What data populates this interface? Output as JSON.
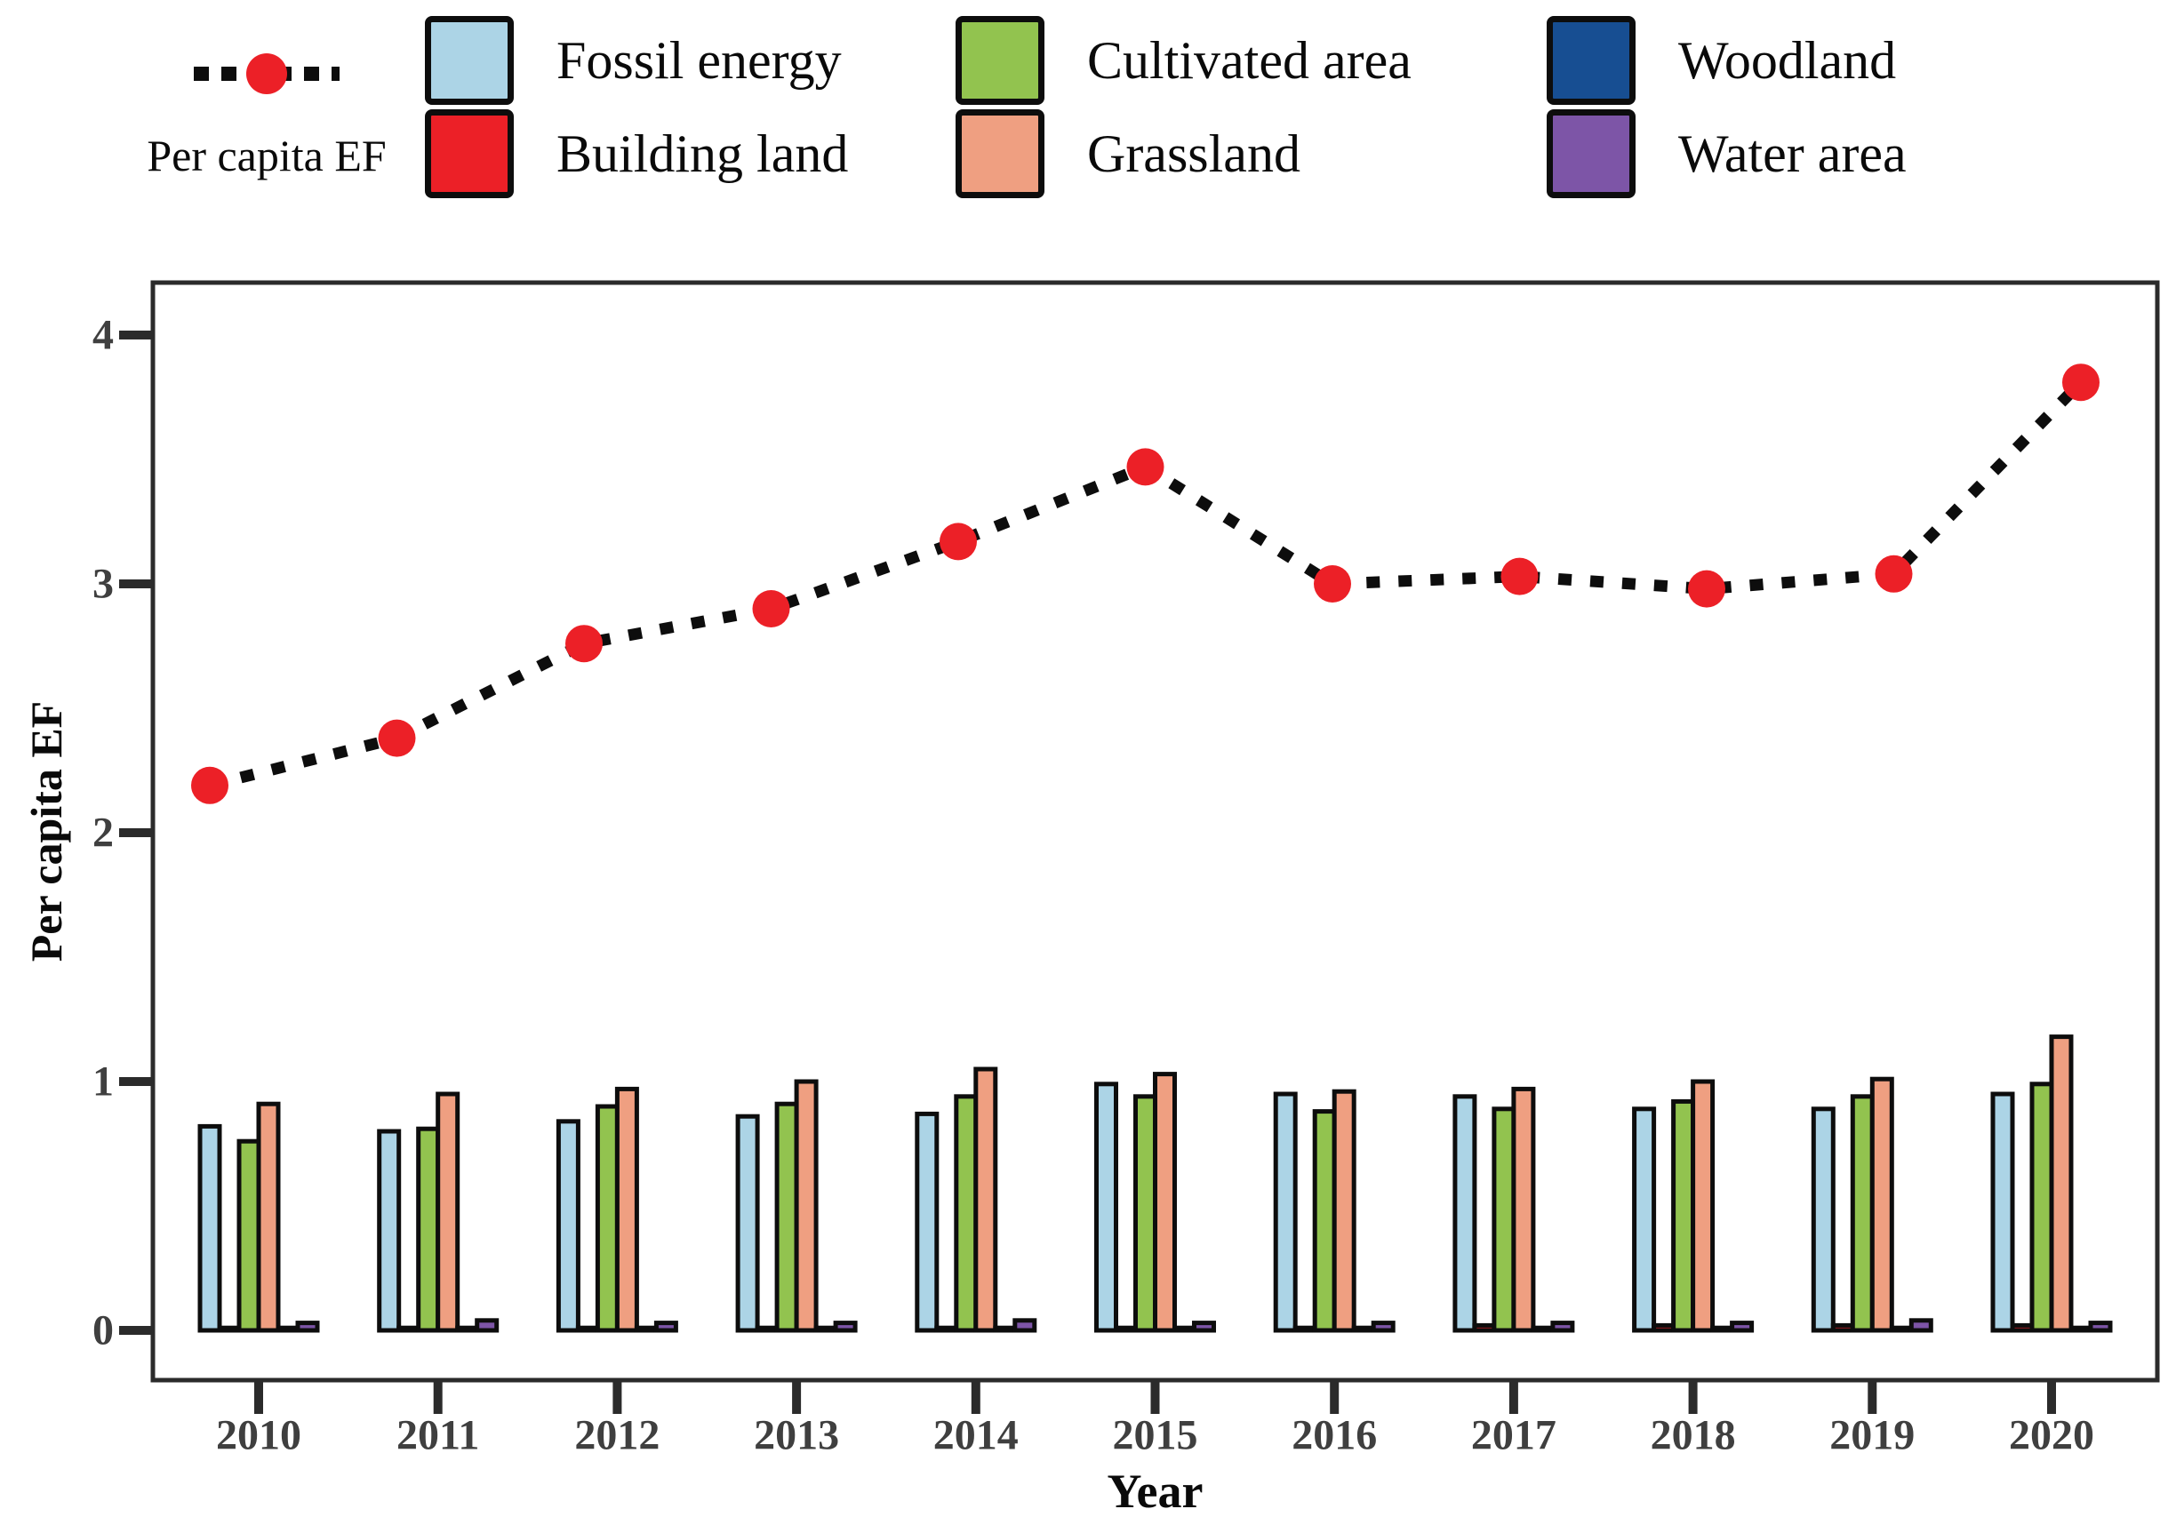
{
  "chart_data": {
    "type": "bar+line",
    "title": "",
    "xlabel": "Year",
    "ylabel": "Per capita EF",
    "categories": [
      "2010",
      "2011",
      "2012",
      "2013",
      "2014",
      "2015",
      "2016",
      "2017",
      "2018",
      "2019",
      "2020"
    ],
    "y_ticks": [
      0,
      1,
      2,
      3,
      4
    ],
    "ylim": [
      -0.2,
      4.2
    ],
    "grid": "off",
    "legend_position": "top",
    "bar_series": [
      {
        "name": "Fossil energy",
        "color": "#ACD4E6",
        "values": [
          0.82,
          0.8,
          0.84,
          0.86,
          0.87,
          0.99,
          0.95,
          0.94,
          0.89,
          0.89,
          0.95
        ]
      },
      {
        "name": "Building land",
        "color": "#EC2027",
        "values": [
          0.01,
          0.01,
          0.01,
          0.01,
          0.01,
          0.01,
          0.01,
          0.02,
          0.02,
          0.02,
          0.02
        ]
      },
      {
        "name": "Cultivated area",
        "color": "#92C34F",
        "values": [
          0.76,
          0.81,
          0.9,
          0.91,
          0.94,
          0.94,
          0.88,
          0.89,
          0.92,
          0.94,
          0.99
        ]
      },
      {
        "name": "Grassland",
        "color": "#EF9F81",
        "values": [
          0.91,
          0.95,
          0.97,
          1.0,
          1.05,
          1.03,
          0.96,
          0.97,
          1.0,
          1.01,
          1.18
        ]
      },
      {
        "name": "Woodland",
        "color": "#174E92",
        "values": [
          0.01,
          0.01,
          0.01,
          0.01,
          0.01,
          0.01,
          0.01,
          0.01,
          0.01,
          0.01,
          0.01
        ]
      },
      {
        "name": "Water area",
        "color": "#7D55A7",
        "values": [
          0.03,
          0.04,
          0.03,
          0.03,
          0.04,
          0.03,
          0.03,
          0.03,
          0.03,
          0.04,
          0.03
        ]
      }
    ],
    "line_series": {
      "name": "Per capita EF",
      "color": "#EC2027",
      "dash_color": "#0d0d0d",
      "values": [
        2.19,
        2.38,
        2.76,
        2.9,
        3.17,
        3.47,
        3.0,
        3.03,
        2.98,
        3.04,
        3.81
      ]
    },
    "axis_color": "#2b2b2b",
    "tick_label_color": "#3f3f3f",
    "title_color": "#0a0a0a"
  }
}
